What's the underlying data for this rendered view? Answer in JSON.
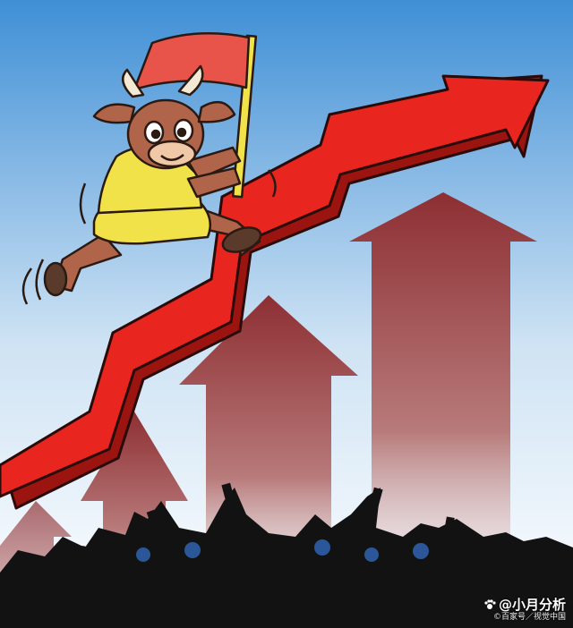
{
  "image": {
    "subject": "bull-market-cartoon",
    "colors": {
      "sky_top": "#3f8fd6",
      "sky_bottom": "#e9f3fb",
      "arrow_red": "#e8261f",
      "arrow_dark": "#9c1410",
      "bg_arrows": "#8d2f33",
      "crowd": "#121212",
      "bull_shirt": "#f2e24a",
      "bull_body": "#b0654b",
      "flag": "#e8534a"
    },
    "icons": [
      "bull-mascot",
      "red-flag",
      "rising-arrow",
      "crowd-silhouette",
      "paw-icon"
    ]
  },
  "watermark": {
    "brand": "@小月分析",
    "source": "©百家号／视觉中国"
  }
}
